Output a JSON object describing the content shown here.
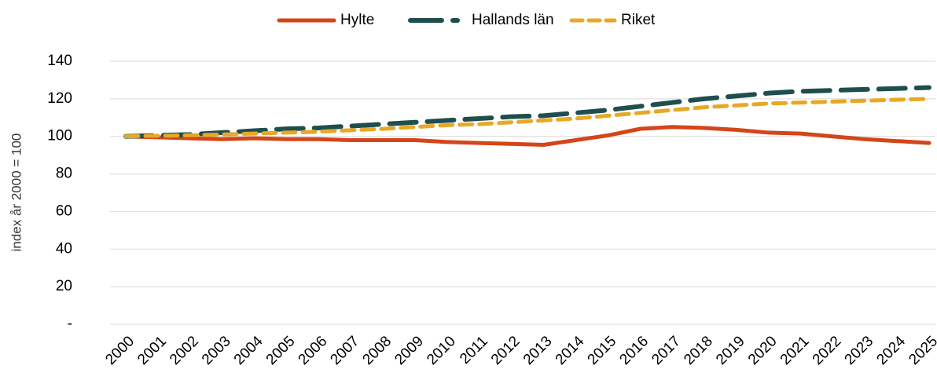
{
  "chart_data": {
    "type": "line",
    "y_label": "index år 2000 = 100",
    "categories": [
      "2000",
      "2001",
      "2002",
      "2003",
      "2004",
      "2005",
      "2006",
      "2007",
      "2008",
      "2009",
      "2010",
      "2011",
      "2012",
      "2013",
      "2014",
      "2015",
      "2016",
      "2017",
      "2018",
      "2019",
      "2020",
      "2021",
      "2022",
      "2023",
      "2024",
      "2025"
    ],
    "series": [
      {
        "name": "Hylte",
        "color": "#d4451a",
        "style": "solid",
        "values": [
          100,
          99.5,
          99,
          98.5,
          99,
          98.5,
          98.5,
          98,
          98,
          98,
          97,
          96.5,
          96,
          95.5,
          98,
          100.5,
          104,
          105,
          104.5,
          103.5,
          102,
          101.5,
          100,
          98.5,
          97.5,
          96.5
        ]
      },
      {
        "name": "Hallands län",
        "color": "#1f4e4e",
        "style": "long-dash",
        "values": [
          100,
          100.5,
          101,
          102,
          103,
          104,
          104.5,
          105.5,
          106.5,
          107.5,
          108.5,
          109.5,
          110.5,
          111,
          112.5,
          114,
          116,
          118,
          120,
          121.5,
          123,
          124,
          124.5,
          125,
          125.5,
          126
        ]
      },
      {
        "name": "Riket",
        "color": "#e8a825",
        "style": "dash",
        "values": [
          100,
          100.3,
          100.6,
          101,
          101.5,
          102,
          102.5,
          103.3,
          104,
          105,
          106,
          106.5,
          107.5,
          108.5,
          109.5,
          111,
          112.5,
          114,
          115.5,
          116.5,
          117.5,
          118,
          118.5,
          119,
          119.5,
          120
        ]
      }
    ],
    "ylim": [
      0,
      140
    ],
    "yticks": [
      {
        "value": 0,
        "label": "-"
      },
      20,
      40,
      60,
      80,
      100,
      120,
      140
    ],
    "grid": true,
    "legend": "top"
  }
}
